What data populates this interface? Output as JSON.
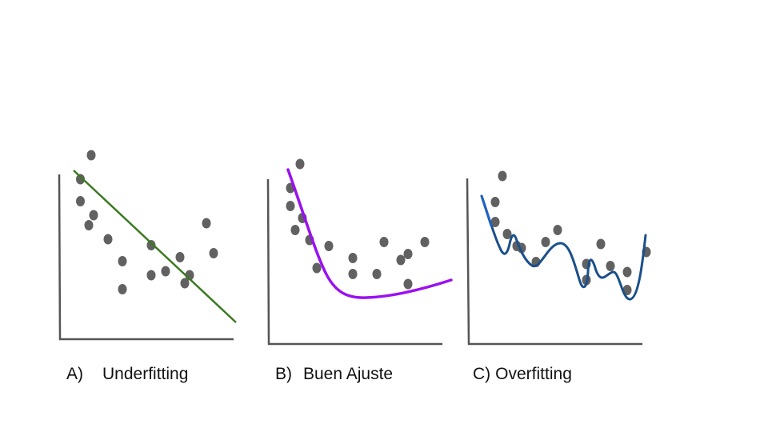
{
  "panels": [
    {
      "id": "underfitting",
      "letter": "A)",
      "title": "Underfitting",
      "curve_color": "#3a7a1f",
      "curve_kind": "straight line",
      "points": [
        [
          0.85,
          0.8
        ],
        [
          0.85,
          0.69
        ],
        [
          1.2,
          0.57
        ],
        [
          1.3,
          0.92
        ],
        [
          1.4,
          0.62
        ],
        [
          2.0,
          0.5
        ],
        [
          2.6,
          0.39
        ],
        [
          2.6,
          0.25
        ],
        [
          3.8,
          0.47
        ],
        [
          4.4,
          0.34
        ],
        [
          3.8,
          0.32
        ],
        [
          5.4,
          0.32
        ],
        [
          5.0,
          0.41
        ],
        [
          5.2,
          0.28
        ],
        [
          6.1,
          0.58
        ],
        [
          6.4,
          0.43
        ]
      ]
    },
    {
      "id": "buen-ajuste",
      "letter": "B)",
      "title": "Buen Ajuste",
      "curve_color": "#9a10f0",
      "curve_kind": "smooth curve",
      "points": [
        [
          0.9,
          0.78
        ],
        [
          0.9,
          0.69
        ],
        [
          1.1,
          0.57
        ],
        [
          1.3,
          0.9
        ],
        [
          1.4,
          0.63
        ],
        [
          1.7,
          0.52
        ],
        [
          2.0,
          0.38
        ],
        [
          2.5,
          0.49
        ],
        [
          3.5,
          0.43
        ],
        [
          3.5,
          0.35
        ],
        [
          4.5,
          0.35
        ],
        [
          4.8,
          0.51
        ],
        [
          5.5,
          0.42
        ],
        [
          5.8,
          0.45
        ],
        [
          5.8,
          0.3
        ],
        [
          6.5,
          0.51
        ]
      ]
    },
    {
      "id": "overfitting",
      "letter": "C)",
      "title": "Overfitting",
      "curve_color": "#1a4f8a",
      "curve_kind": "wiggly curve",
      "points": [
        [
          1.1,
          0.71
        ],
        [
          1.1,
          0.61
        ],
        [
          1.4,
          0.84
        ],
        [
          1.6,
          0.55
        ],
        [
          2.0,
          0.49
        ],
        [
          2.2,
          0.48
        ],
        [
          2.8,
          0.41
        ],
        [
          3.2,
          0.51
        ],
        [
          3.7,
          0.57
        ],
        [
          4.9,
          0.4
        ],
        [
          4.9,
          0.32
        ],
        [
          5.5,
          0.5
        ],
        [
          5.9,
          0.39
        ],
        [
          6.6,
          0.36
        ],
        [
          6.6,
          0.27
        ],
        [
          7.4,
          0.46
        ]
      ]
    }
  ]
}
